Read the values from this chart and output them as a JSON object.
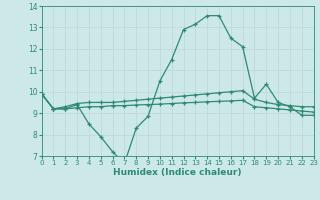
{
  "line1_x": [
    0,
    1,
    2,
    3,
    4,
    5,
    6,
    7,
    8,
    9,
    10,
    11,
    12,
    13,
    14,
    15,
    16,
    17,
    18,
    19,
    20,
    21,
    22,
    23
  ],
  "line1_y": [
    9.9,
    9.2,
    9.2,
    9.4,
    8.5,
    7.9,
    7.2,
    6.65,
    8.3,
    8.85,
    10.5,
    11.5,
    12.9,
    13.15,
    13.55,
    13.55,
    12.5,
    12.1,
    9.7,
    10.35,
    9.5,
    9.3,
    8.9,
    8.9
  ],
  "line2_x": [
    0,
    1,
    2,
    3,
    4,
    5,
    6,
    7,
    8,
    9,
    10,
    11,
    12,
    13,
    14,
    15,
    16,
    17,
    18,
    19,
    20,
    21,
    22,
    23
  ],
  "line2_y": [
    9.9,
    9.2,
    9.3,
    9.45,
    9.5,
    9.5,
    9.5,
    9.55,
    9.6,
    9.65,
    9.7,
    9.75,
    9.8,
    9.85,
    9.9,
    9.95,
    10.0,
    10.05,
    9.65,
    9.5,
    9.4,
    9.35,
    9.3,
    9.3
  ],
  "line3_x": [
    0,
    1,
    2,
    3,
    4,
    5,
    6,
    7,
    8,
    9,
    10,
    11,
    12,
    13,
    14,
    15,
    16,
    17,
    18,
    19,
    20,
    21,
    22,
    23
  ],
  "line3_y": [
    9.9,
    9.2,
    9.2,
    9.25,
    9.3,
    9.3,
    9.35,
    9.35,
    9.38,
    9.4,
    9.42,
    9.45,
    9.48,
    9.5,
    9.53,
    9.55,
    9.57,
    9.6,
    9.3,
    9.25,
    9.2,
    9.15,
    9.1,
    9.05
  ],
  "line_color": "#2e8b70",
  "background_color": "#cce8e8",
  "grid_color": "#c0d8d8",
  "xlabel": "Humidex (Indice chaleur)",
  "ylim": [
    7,
    14
  ],
  "xlim": [
    0,
    23
  ],
  "yticks": [
    7,
    8,
    9,
    10,
    11,
    12,
    13,
    14
  ],
  "xticks": [
    0,
    1,
    2,
    3,
    4,
    5,
    6,
    7,
    8,
    9,
    10,
    11,
    12,
    13,
    14,
    15,
    16,
    17,
    18,
    19,
    20,
    21,
    22,
    23
  ],
  "marker": "+",
  "markersize": 3.5,
  "linewidth": 0.9
}
